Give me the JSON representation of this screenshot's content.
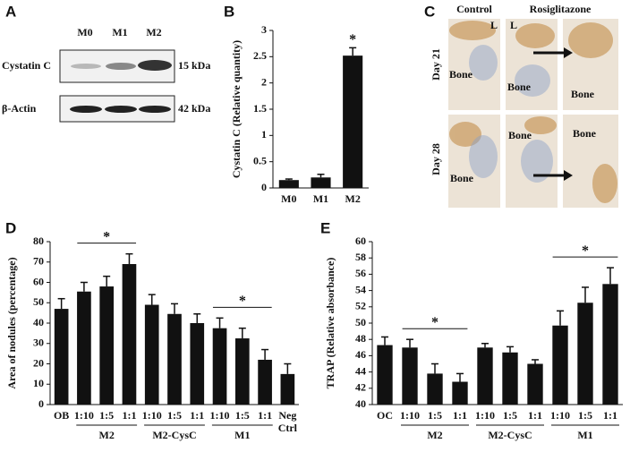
{
  "panel_labels": [
    "A",
    "B",
    "C",
    "D",
    "E"
  ],
  "blot": {
    "lanes": [
      "M0",
      "M1",
      "M2"
    ],
    "rows": [
      {
        "label": "Cystatin C",
        "size": "15 kDa"
      },
      {
        "label": "β-Actin",
        "size": "42 kDa"
      }
    ]
  },
  "histology": {
    "columns": [
      "Control",
      "Rosiglitazone"
    ],
    "rows": [
      "Day 21",
      "Day 28"
    ],
    "labels": [
      "L",
      "L",
      "Bone",
      "Bone",
      "Bone",
      "Bone",
      "Bone",
      "Bone"
    ]
  },
  "chart_data": [
    {
      "type": "bar",
      "ylabel": "Cystatin C (Relative quantity)",
      "categories": [
        "M0",
        "M1",
        "M2"
      ],
      "values": [
        0.15,
        0.2,
        2.52
      ],
      "errors": [
        0.02,
        0.06,
        0.15
      ],
      "color": "#111111",
      "ylim": [
        0,
        3
      ],
      "yticks": [
        0,
        0.5,
        1,
        1.5,
        2,
        2.5,
        3
      ],
      "annotations": [
        {
          "text": "*",
          "category": "M2"
        }
      ]
    },
    {
      "type": "bar",
      "ylabel": "Area of nodules (percentage)",
      "categories": [
        "OB",
        "1:10",
        "1:5",
        "1:1",
        "1:10",
        "1:5",
        "1:1",
        "1:10",
        "1:5",
        "1:1",
        "Neg Ctrl"
      ],
      "values": [
        47,
        55.5,
        58,
        69,
        49,
        44.5,
        40,
        37.5,
        32.5,
        22,
        15
      ],
      "errors": [
        5,
        4.5,
        5,
        5,
        5,
        5,
        4.5,
        5,
        5,
        5,
        5
      ],
      "groups": [
        "M2",
        "M2-CysC",
        "M1"
      ],
      "color": "#111111",
      "ylim": [
        0,
        80
      ],
      "yticks": [
        0,
        10,
        20,
        30,
        40,
        50,
        60,
        70,
        80
      ],
      "annotations": [
        {
          "text": "*",
          "group": "M2"
        },
        {
          "text": "*",
          "group": "M1"
        }
      ]
    },
    {
      "type": "bar",
      "ylabel": "TRAP (Relative absorbance)",
      "categories": [
        "OC",
        "1:10",
        "1:5",
        "1:1",
        "1:10",
        "1:5",
        "1:1",
        "1:10",
        "1:5",
        "1:1"
      ],
      "values": [
        47.3,
        47,
        43.8,
        42.8,
        47,
        46.4,
        45,
        49.7,
        52.5,
        54.8
      ],
      "errors": [
        1,
        1,
        1.2,
        1,
        0.5,
        0.7,
        0.5,
        1.8,
        1.9,
        2
      ],
      "groups": [
        "M2",
        "M2-CysC",
        "M1"
      ],
      "color": "#111111",
      "ylim": [
        40,
        60
      ],
      "yticks": [
        40,
        42,
        44,
        46,
        48,
        50,
        52,
        54,
        56,
        58,
        60
      ],
      "annotations": [
        {
          "text": "*",
          "group": "M2"
        },
        {
          "text": "*",
          "group": "M1"
        }
      ]
    }
  ]
}
